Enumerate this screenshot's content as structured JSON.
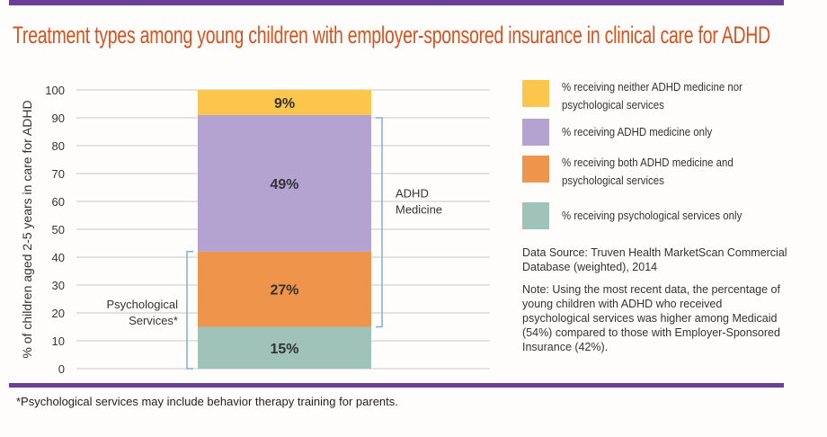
{
  "chart_data": {
    "type": "bar",
    "stacked": true,
    "title": "Treatment types among young children with employer-sponsored insurance in clinical care for ADHD",
    "ylabel": "% of children aged 2-5 years in care for ADHD",
    "ylim": [
      0,
      100
    ],
    "yticks": [
      0,
      10,
      20,
      30,
      40,
      50,
      60,
      70,
      80,
      90,
      100
    ],
    "grid": true,
    "legend_placement": "right",
    "series": [
      {
        "name": "% receiving psychological services only",
        "value": 15,
        "label": "15%",
        "color": "#a0c3b9"
      },
      {
        "name": "% receiving both ADHD medicine and psychological services",
        "value": 27,
        "label": "27%",
        "color": "#ef944b"
      },
      {
        "name": "% receiving ADHD medicine only",
        "value": 49,
        "label": "49%",
        "color": "#b4a2d0"
      },
      {
        "name": "% receiving neither ADHD medicine nor psychological services",
        "value": 9,
        "label": "9%",
        "color": "#fcc54c"
      }
    ],
    "legend_order": [
      3,
      2,
      1,
      0
    ],
    "annotations": [
      {
        "text": "ADHD Medicine",
        "lines": [
          "ADHD",
          "Medicine"
        ],
        "range": [
          15,
          90
        ]
      },
      {
        "text": "Psychological Services*",
        "lines": [
          "Psychological",
          "Services*"
        ],
        "range": [
          0,
          42
        ]
      }
    ]
  },
  "source": "Data Source: Truven Health MarketScan Commercial Database (weighted), 2014",
  "note": "Note: Using the most recent data, the percentage of young children with ADHD who received psychological services was higher among Medicaid (54%) compared to those with Employer-Sponsored Insurance (42%).",
  "footnote": "*Psychological services may include behavior therapy training for parents.",
  "colors": {
    "accent_bar": "#6b3f98",
    "title": "#d4531f",
    "bracket": "#7fb0d8"
  }
}
